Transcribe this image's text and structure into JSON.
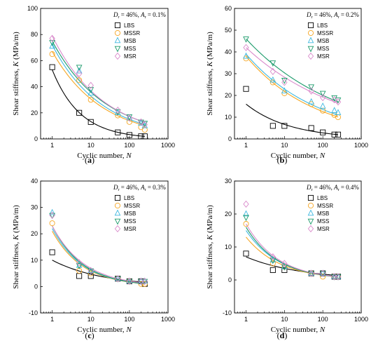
{
  "colors": {
    "LBS": "#000000",
    "MSSR": "#f5a623",
    "MSB": "#3fb8e0",
    "MSS": "#1a9a6a",
    "MSR": "#d98acb"
  },
  "chart_data": [
    {
      "type": "scatter",
      "label": "(a)",
      "annotation_prefix": "D",
      "annotation_sub1": "r",
      "annotation_mid": " = 46%, ",
      "annotation_A": "A",
      "annotation_sub2": "r",
      "annotation_suffix": " = 0.1%",
      "xlabel": "Cyclic number, N",
      "ylabel": "Shear stiffness, K (MPa/m)",
      "xscale": "log",
      "xlim": [
        0.5,
        1000
      ],
      "ylim": [
        0,
        100
      ],
      "yticks": [
        0,
        20,
        40,
        60,
        80,
        100
      ],
      "xticks": [
        1,
        10,
        100,
        1000
      ],
      "legend": "top-right",
      "series": [
        {
          "name": "LBS",
          "marker": "square",
          "x": [
            1,
            5,
            10,
            50,
            100,
            200,
            250
          ],
          "y": [
            55,
            20,
            13,
            5,
            3,
            2,
            2
          ],
          "fit": {
            "a": 53,
            "b": -0.6
          }
        },
        {
          "name": "MSSR",
          "marker": "circle",
          "x": [
            1,
            5,
            10,
            50,
            100,
            200,
            250
          ],
          "y": [
            65,
            45,
            30,
            18,
            13,
            9,
            7
          ],
          "fit": {
            "a": 67,
            "b": -0.34
          }
        },
        {
          "name": "MSB",
          "marker": "triangle-up",
          "x": [
            1,
            5,
            10,
            50,
            100,
            200,
            250
          ],
          "y": [
            71,
            52,
            35,
            20,
            16,
            12,
            10
          ],
          "fit": {
            "a": 72,
            "b": -0.34
          }
        },
        {
          "name": "MSS",
          "marker": "triangle-down",
          "x": [
            1,
            5,
            10,
            50,
            100,
            200,
            250
          ],
          "y": [
            74,
            55,
            38,
            21,
            17,
            13,
            12
          ],
          "fit": {
            "a": 75,
            "b": -0.32
          }
        },
        {
          "name": "MSR",
          "marker": "diamond",
          "x": [
            1,
            5,
            10,
            50,
            100,
            200,
            250
          ],
          "y": [
            77,
            50,
            41,
            22,
            16,
            13,
            11
          ],
          "fit": {
            "a": 79,
            "b": -0.33
          }
        }
      ]
    },
    {
      "type": "scatter",
      "label": "(b)",
      "annotation_prefix": "D",
      "annotation_sub1": "r",
      "annotation_mid": " = 46%, ",
      "annotation_A": "A",
      "annotation_sub2": "r",
      "annotation_suffix": " = 0.2%",
      "xlabel": "Cyclic number, N",
      "ylabel": "Shear stiffness, K (MPa/m)",
      "xscale": "log",
      "xlim": [
        0.5,
        1000
      ],
      "ylim": [
        0,
        60
      ],
      "yticks": [
        0,
        10,
        20,
        30,
        40,
        50,
        60
      ],
      "xticks": [
        1,
        10,
        100,
        1000
      ],
      "legend": "top-right",
      "series": [
        {
          "name": "LBS",
          "marker": "square",
          "x": [
            1,
            5,
            10,
            50,
            100,
            200,
            250
          ],
          "y": [
            23,
            6,
            6,
            5,
            3,
            2,
            2
          ],
          "fit": {
            "a": 16,
            "b": -0.38
          }
        },
        {
          "name": "MSSR",
          "marker": "circle",
          "x": [
            1,
            5,
            10,
            50,
            100,
            200,
            250
          ],
          "y": [
            37,
            26,
            21,
            16,
            13,
            11,
            10
          ],
          "fit": {
            "a": 38,
            "b": -0.24
          }
        },
        {
          "name": "MSB",
          "marker": "triangle-up",
          "x": [
            1,
            5,
            10,
            50,
            100,
            200,
            250
          ],
          "y": [
            38,
            27,
            22,
            17,
            15,
            13,
            12
          ],
          "fit": {
            "a": 39,
            "b": -0.23
          }
        },
        {
          "name": "MSS",
          "marker": "triangle-down",
          "x": [
            1,
            5,
            10,
            50,
            100,
            200,
            250
          ],
          "y": [
            46,
            35,
            27,
            24,
            21,
            19,
            18
          ],
          "fit": {
            "a": 46,
            "b": -0.18
          }
        },
        {
          "name": "MSR",
          "marker": "diamond",
          "x": [
            1,
            5,
            10,
            50,
            100,
            200,
            250
          ],
          "y": [
            42,
            31,
            26,
            22,
            19,
            18,
            17
          ],
          "fit": {
            "a": 42,
            "b": -0.17
          }
        }
      ]
    },
    {
      "type": "scatter",
      "label": "(c)",
      "annotation_prefix": "D",
      "annotation_sub1": "r",
      "annotation_mid": " = 46%, ",
      "annotation_A": "A",
      "annotation_sub2": "r",
      "annotation_suffix": " = 0.3%",
      "xlabel": "Cyclic number, N",
      "ylabel": "Shear stiffness, K (MPa/m)",
      "xscale": "log",
      "xlim": [
        0.5,
        1000
      ],
      "ylim": [
        -10,
        40
      ],
      "yticks": [
        -10,
        0,
        10,
        20,
        30,
        40
      ],
      "xticks": [
        1,
        10,
        100,
        1000
      ],
      "legend": "top-right",
      "series": [
        {
          "name": "LBS",
          "marker": "square",
          "x": [
            1,
            5,
            10,
            50,
            100,
            200,
            250
          ],
          "y": [
            13,
            4,
            4,
            3,
            2,
            2,
            1
          ],
          "fit": {
            "a": 10,
            "b": -0.33
          }
        },
        {
          "name": "MSSR",
          "marker": "circle",
          "x": [
            1,
            5,
            10,
            50,
            100,
            200,
            250
          ],
          "y": [
            24,
            6,
            5,
            3,
            2,
            1,
            1
          ],
          "fit": {
            "a": 21,
            "b": -0.55
          }
        },
        {
          "name": "MSB",
          "marker": "triangle-up",
          "x": [
            1,
            5,
            10,
            50,
            100,
            200,
            250
          ],
          "y": [
            28,
            8,
            6,
            3,
            2,
            2,
            2
          ],
          "fit": {
            "a": 22,
            "b": -0.55
          }
        },
        {
          "name": "MSS",
          "marker": "triangle-down",
          "x": [
            1,
            5,
            10,
            50,
            100,
            200,
            250
          ],
          "y": [
            27,
            8,
            6,
            3,
            2,
            2,
            2
          ],
          "fit": {
            "a": 23,
            "b": -0.55
          }
        },
        {
          "name": "MSR",
          "marker": "diamond",
          "x": [
            1,
            5,
            10,
            50,
            100,
            200,
            250
          ],
          "y": [
            27,
            9,
            6,
            3,
            2,
            2,
            2
          ],
          "fit": {
            "a": 23,
            "b": -0.52
          }
        }
      ]
    },
    {
      "type": "scatter",
      "label": "(d)",
      "annotation_prefix": "D",
      "annotation_sub1": "r",
      "annotation_mid": " = 46%, ",
      "annotation_A": "A",
      "annotation_sub2": "r",
      "annotation_suffix": " = 0.4%",
      "xlabel": "Cyclic number, N",
      "ylabel": "Shear stiffness, K (MPa/m)",
      "xscale": "log",
      "xlim": [
        0.5,
        1000
      ],
      "ylim": [
        -10,
        30
      ],
      "yticks": [
        -10,
        0,
        10,
        20,
        30
      ],
      "xticks": [
        1,
        10,
        100,
        1000
      ],
      "legend": "top-right",
      "series": [
        {
          "name": "LBS",
          "marker": "square",
          "x": [
            1,
            5,
            10,
            50,
            100,
            200,
            250
          ],
          "y": [
            8,
            3,
            3,
            2,
            2,
            1,
            1
          ],
          "fit": {
            "a": 7,
            "b": -0.3
          }
        },
        {
          "name": "MSSR",
          "marker": "circle",
          "x": [
            1,
            5,
            10,
            50,
            100,
            200,
            250
          ],
          "y": [
            17,
            5,
            4,
            2,
            1,
            1,
            1
          ],
          "fit": {
            "a": 13,
            "b": -0.48
          }
        },
        {
          "name": "MSB",
          "marker": "triangle-up",
          "x": [
            1,
            5,
            10,
            50,
            100,
            200,
            250
          ],
          "y": [
            20,
            6,
            4,
            2,
            2,
            1,
            1
          ],
          "fit": {
            "a": 15,
            "b": -0.5
          }
        },
        {
          "name": "MSS",
          "marker": "triangle-down",
          "x": [
            1,
            5,
            10,
            50,
            100,
            200,
            250
          ],
          "y": [
            19,
            6,
            4,
            2,
            2,
            1,
            1
          ],
          "fit": {
            "a": 16,
            "b": -0.52
          }
        },
        {
          "name": "MSR",
          "marker": "diamond",
          "x": [
            1,
            5,
            10,
            50,
            100,
            200,
            250
          ],
          "y": [
            23,
            7,
            5,
            2,
            2,
            1,
            1
          ],
          "fit": {
            "a": 17,
            "b": -0.52
          }
        }
      ]
    }
  ]
}
